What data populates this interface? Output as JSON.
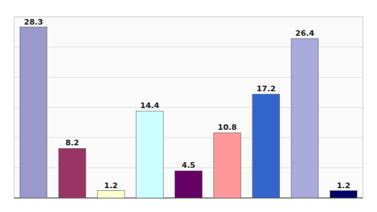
{
  "chart_data": {
    "type": "bar",
    "categories": [
      null,
      null,
      null,
      null,
      null,
      null,
      null,
      null,
      null
    ],
    "values": [
      28.3,
      8.2,
      1.2,
      14.4,
      4.5,
      10.8,
      17.2,
      26.4,
      1.2
    ],
    "colors": [
      "#9999CC",
      "#993366",
      "#FFFFCC",
      "#CCFFFF",
      "#660066",
      "#FF9999",
      "#3366CC",
      "#AAAADD",
      "#000066"
    ],
    "ylim": [
      0,
      30
    ],
    "yticks": [
      0,
      5,
      10,
      15,
      20,
      25,
      30
    ],
    "grid": true,
    "data_labels": true,
    "tick_labels": false
  }
}
